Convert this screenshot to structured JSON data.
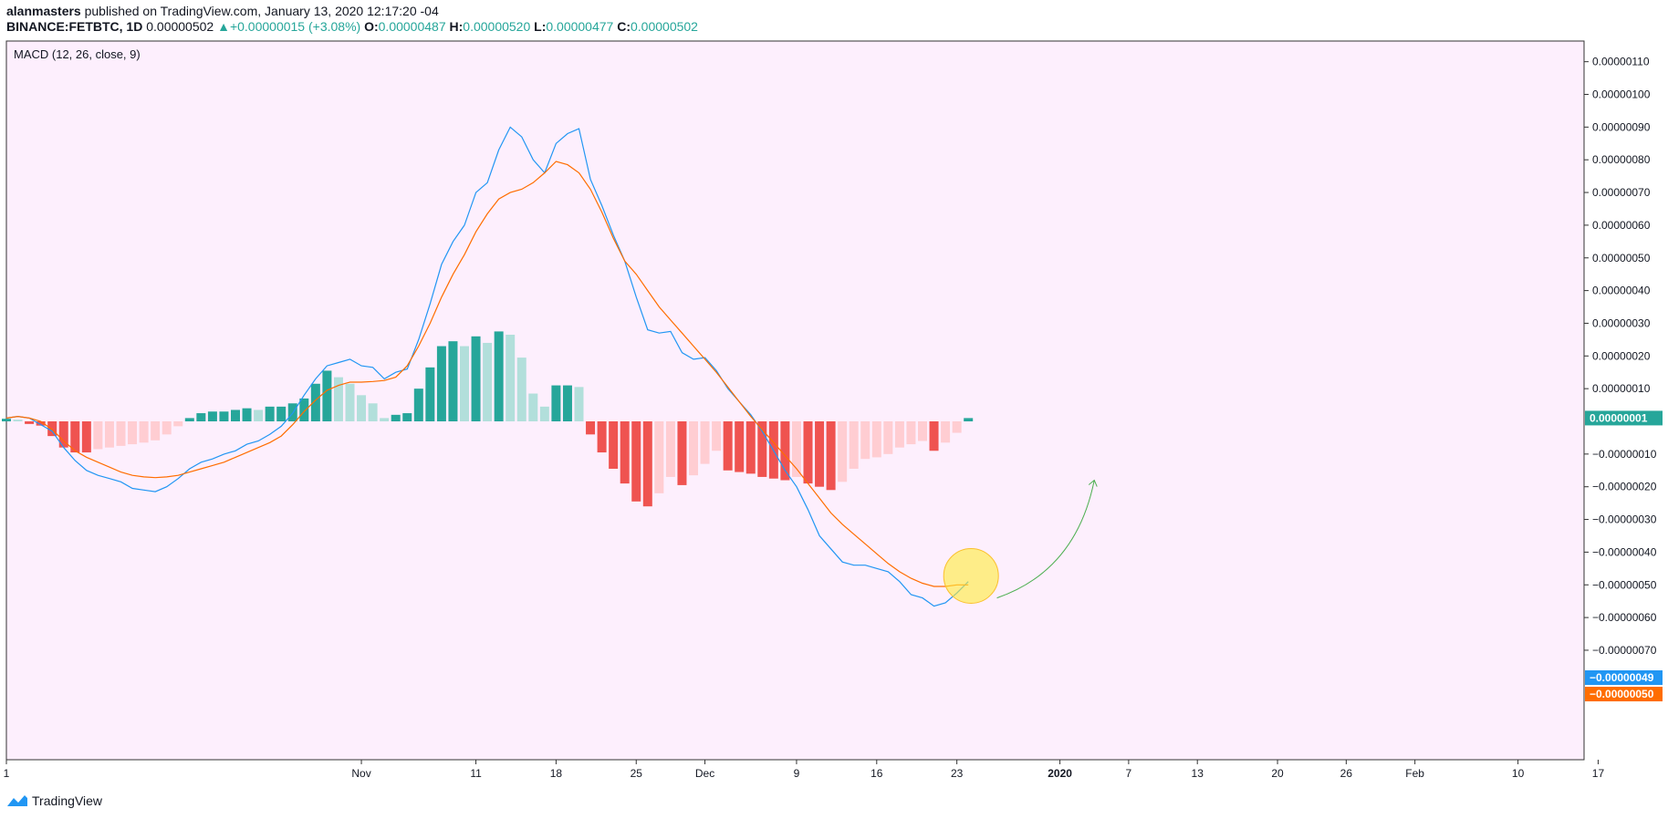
{
  "header": {
    "author": "alanmasters",
    "published": " published on TradingView.com, January 13, 2020 12:17:20 -04",
    "symbol": "BINANCE:FETBTC, 1D",
    "last": "0.00000502",
    "change_arrow": "▲",
    "change": "+0.00000015 (+3.08%)",
    "o_label": "O:",
    "o": "0.00000487",
    "h_label": "H:",
    "h": "0.00000520",
    "l_label": "L:",
    "l": "0.00000477",
    "c_label": "C:",
    "c": "0.00000502"
  },
  "footer": {
    "brand": "TradingView",
    "icon": "tradingview-logo-icon"
  },
  "colors": {
    "pane_bg": "#fdeffd",
    "macd_line": "#2196f3",
    "signal_line": "#ff6d00",
    "hist_pos_strong": "#26a69a",
    "hist_pos_weak": "#b2dfdb",
    "hist_neg_strong": "#ef5350",
    "hist_neg_weak": "#ffcdd2",
    "highlight": "#ffeb3b",
    "arrow": "#4caf50"
  },
  "chart_data": {
    "type": "line",
    "title": "MACD (12, 26, close, 9)",
    "x_ticks": [
      {
        "d": 0,
        "label": "1"
      },
      {
        "d": 31,
        "label": "Nov"
      },
      {
        "d": 41,
        "label": "11"
      },
      {
        "d": 48,
        "label": "18"
      },
      {
        "d": 55,
        "label": "25"
      },
      {
        "d": 61,
        "label": "Dec"
      },
      {
        "d": 69,
        "label": "9"
      },
      {
        "d": 76,
        "label": "16"
      },
      {
        "d": 83,
        "label": "23"
      },
      {
        "d": 92,
        "label": "2020"
      },
      {
        "d": 98,
        "label": "7"
      },
      {
        "d": 104,
        "label": "13"
      },
      {
        "d": 111,
        "label": "20"
      },
      {
        "d": 117,
        "label": "26"
      },
      {
        "d": 123,
        "label": "Feb"
      },
      {
        "d": 132,
        "label": "10"
      },
      {
        "d": 139,
        "label": "17"
      }
    ],
    "y_ticks": [
      {
        "v": 110,
        "label": "0.00000110"
      },
      {
        "v": 100,
        "label": "0.00000100"
      },
      {
        "v": 90,
        "label": "0.00000090"
      },
      {
        "v": 80,
        "label": "0.00000080"
      },
      {
        "v": 70,
        "label": "0.00000070"
      },
      {
        "v": 60,
        "label": "0.00000060"
      },
      {
        "v": 50,
        "label": "0.00000050"
      },
      {
        "v": 40,
        "label": "0.00000040"
      },
      {
        "v": 30,
        "label": "0.00000030"
      },
      {
        "v": 20,
        "label": "0.00000020"
      },
      {
        "v": 10,
        "label": "0.00000010"
      },
      {
        "v": -10,
        "label": "−0.00000010"
      },
      {
        "v": -20,
        "label": "−0.00000020"
      },
      {
        "v": -30,
        "label": "−0.00000030"
      },
      {
        "v": -40,
        "label": "−0.00000040"
      },
      {
        "v": -50,
        "label": "−0.00000050"
      },
      {
        "v": -60,
        "label": "−0.00000060"
      },
      {
        "v": -70,
        "label": "−0.00000070"
      }
    ],
    "y_unit_note": "values in units of 1e-8 BTC",
    "ylim": [
      -70,
      115
    ],
    "xlim": [
      0,
      140
    ],
    "series": [
      {
        "name": "MACD",
        "values": [
          [
            0,
            1
          ],
          [
            1,
            1.5
          ],
          [
            2,
            1
          ],
          [
            3,
            -1
          ],
          [
            4,
            -3
          ],
          [
            5,
            -8
          ],
          [
            6,
            -12
          ],
          [
            7,
            -15
          ],
          [
            8,
            -16.5
          ],
          [
            9,
            -17.5
          ],
          [
            10,
            -18.5
          ],
          [
            11,
            -20.5
          ],
          [
            12,
            -21
          ],
          [
            13,
            -21.5
          ],
          [
            14,
            -20
          ],
          [
            15,
            -17.5
          ],
          [
            16,
            -14.5
          ],
          [
            17,
            -12.5
          ],
          [
            18,
            -11.5
          ],
          [
            19,
            -10
          ],
          [
            20,
            -9
          ],
          [
            21,
            -7
          ],
          [
            22,
            -6
          ],
          [
            23,
            -4
          ],
          [
            24,
            -1.5
          ],
          [
            25,
            2.5
          ],
          [
            26,
            8
          ],
          [
            27,
            13
          ],
          [
            28,
            17
          ],
          [
            29,
            18
          ],
          [
            30,
            19
          ],
          [
            31,
            17
          ],
          [
            32,
            16.5
          ],
          [
            33,
            13
          ],
          [
            34,
            15
          ],
          [
            35,
            16
          ],
          [
            36,
            25
          ],
          [
            37,
            36
          ],
          [
            38,
            48
          ],
          [
            39,
            55
          ],
          [
            40,
            60
          ],
          [
            41,
            70
          ],
          [
            42,
            73
          ],
          [
            43,
            83
          ],
          [
            44,
            90
          ],
          [
            45,
            87
          ],
          [
            46,
            80
          ],
          [
            47,
            76
          ],
          [
            48,
            85
          ],
          [
            49,
            88
          ],
          [
            50,
            89.5
          ],
          [
            51,
            74
          ],
          [
            52,
            66
          ],
          [
            53,
            57
          ],
          [
            54,
            49
          ],
          [
            55,
            38
          ],
          [
            56,
            28
          ],
          [
            57,
            27
          ],
          [
            58,
            27.5
          ],
          [
            59,
            21
          ],
          [
            60,
            19
          ],
          [
            61,
            19.5
          ],
          [
            62,
            15.5
          ],
          [
            63,
            10
          ],
          [
            64,
            6
          ],
          [
            65,
            2
          ],
          [
            66,
            -3
          ],
          [
            67,
            -9
          ],
          [
            68,
            -15
          ],
          [
            69,
            -20
          ],
          [
            70,
            -27
          ],
          [
            71,
            -35
          ],
          [
            72,
            -39
          ],
          [
            73,
            -43
          ],
          [
            74,
            -44
          ],
          [
            75,
            -44
          ],
          [
            76,
            -45
          ],
          [
            77,
            -46
          ],
          [
            78,
            -49
          ],
          [
            79,
            -53
          ],
          [
            80,
            -54
          ],
          [
            81,
            -56.5
          ],
          [
            82,
            -55.5
          ],
          [
            83,
            -52.5
          ],
          [
            84,
            -49
          ]
        ]
      },
      {
        "name": "Signal",
        "values": [
          [
            0,
            1
          ],
          [
            1,
            1.5
          ],
          [
            2,
            1
          ],
          [
            3,
            0
          ],
          [
            4,
            -2.5
          ],
          [
            5,
            -6
          ],
          [
            6,
            -9
          ],
          [
            7,
            -11
          ],
          [
            8,
            -12.5
          ],
          [
            9,
            -14
          ],
          [
            10,
            -15.5
          ],
          [
            11,
            -16.5
          ],
          [
            12,
            -17
          ],
          [
            13,
            -17.2
          ],
          [
            14,
            -17
          ],
          [
            15,
            -16.5
          ],
          [
            16,
            -15.5
          ],
          [
            17,
            -14.5
          ],
          [
            18,
            -13.5
          ],
          [
            19,
            -12.5
          ],
          [
            20,
            -11
          ],
          [
            21,
            -9.5
          ],
          [
            22,
            -8
          ],
          [
            23,
            -6.5
          ],
          [
            24,
            -4.5
          ],
          [
            25,
            -1
          ],
          [
            26,
            3
          ],
          [
            27,
            6.5
          ],
          [
            28,
            9.5
          ],
          [
            29,
            11
          ],
          [
            30,
            12
          ],
          [
            31,
            12
          ],
          [
            32,
            12.2
          ],
          [
            33,
            12.5
          ],
          [
            34,
            13.5
          ],
          [
            35,
            17
          ],
          [
            36,
            23
          ],
          [
            37,
            30
          ],
          [
            38,
            38
          ],
          [
            39,
            45
          ],
          [
            40,
            51
          ],
          [
            41,
            58
          ],
          [
            42,
            63.5
          ],
          [
            43,
            68
          ],
          [
            44,
            70
          ],
          [
            45,
            71
          ],
          [
            46,
            73
          ],
          [
            47,
            76
          ],
          [
            48,
            79.5
          ],
          [
            49,
            78.5
          ],
          [
            50,
            76
          ],
          [
            51,
            71
          ],
          [
            52,
            64
          ],
          [
            53,
            56
          ],
          [
            54,
            49
          ],
          [
            55,
            45
          ],
          [
            56,
            40
          ],
          [
            57,
            35
          ],
          [
            58,
            31
          ],
          [
            59,
            27
          ],
          [
            60,
            23
          ],
          [
            61,
            19
          ],
          [
            62,
            15
          ],
          [
            63,
            10.5
          ],
          [
            64,
            6
          ],
          [
            65,
            1.5
          ],
          [
            66,
            -2.5
          ],
          [
            67,
            -6.5
          ],
          [
            68,
            -10.5
          ],
          [
            69,
            -14.5
          ],
          [
            70,
            -19
          ],
          [
            71,
            -23.5
          ],
          [
            72,
            -28
          ],
          [
            73,
            -31.5
          ],
          [
            74,
            -34.5
          ],
          [
            75,
            -37.5
          ],
          [
            76,
            -40.5
          ],
          [
            77,
            -43.5
          ],
          [
            78,
            -46
          ],
          [
            79,
            -48
          ],
          [
            80,
            -49.5
          ],
          [
            81,
            -50.5
          ],
          [
            82,
            -50.5
          ],
          [
            83,
            -50
          ],
          [
            84,
            -50
          ]
        ]
      }
    ],
    "histogram": [
      [
        0,
        0.8
      ],
      [
        1,
        0.5
      ],
      [
        2,
        -0.8
      ],
      [
        3,
        -1.3
      ],
      [
        4,
        -4.5
      ],
      [
        5,
        -8
      ],
      [
        6,
        -9.5
      ],
      [
        7,
        -9.5
      ],
      [
        8,
        -8.5
      ],
      [
        9,
        -8
      ],
      [
        10,
        -7.5
      ],
      [
        11,
        -7
      ],
      [
        12,
        -6.5
      ],
      [
        13,
        -5.8
      ],
      [
        14,
        -4
      ],
      [
        15,
        -1.5
      ],
      [
        16,
        1
      ],
      [
        17,
        2.5
      ],
      [
        18,
        3
      ],
      [
        19,
        3
      ],
      [
        20,
        3.5
      ],
      [
        21,
        4
      ],
      [
        22,
        3.5
      ],
      [
        23,
        4.5
      ],
      [
        24,
        4.5
      ],
      [
        25,
        5.5
      ],
      [
        26,
        7
      ],
      [
        27,
        11.5
      ],
      [
        28,
        15.5
      ],
      [
        29,
        13.5
      ],
      [
        30,
        11.5
      ],
      [
        31,
        8
      ],
      [
        32,
        5.5
      ],
      [
        33,
        1
      ],
      [
        34,
        2
      ],
      [
        35,
        2.5
      ],
      [
        36,
        10
      ],
      [
        37,
        16.5
      ],
      [
        38,
        23
      ],
      [
        39,
        24.5
      ],
      [
        40,
        23
      ],
      [
        41,
        26
      ],
      [
        42,
        24
      ],
      [
        43,
        27.5
      ],
      [
        44,
        26.5
      ],
      [
        45,
        19.5
      ],
      [
        46,
        8.5
      ],
      [
        47,
        4.5
      ],
      [
        48,
        11
      ],
      [
        49,
        11
      ],
      [
        50,
        10.5
      ],
      [
        51,
        -4
      ],
      [
        52,
        -9.5
      ],
      [
        53,
        -14.5
      ],
      [
        54,
        -19
      ],
      [
        55,
        -24.5
      ],
      [
        56,
        -26
      ],
      [
        57,
        -22
      ],
      [
        58,
        -17
      ],
      [
        59,
        -19.5
      ],
      [
        60,
        -16.5
      ],
      [
        61,
        -13
      ],
      [
        62,
        -9
      ],
      [
        63,
        -15
      ],
      [
        64,
        -15.5
      ],
      [
        65,
        -16
      ],
      [
        66,
        -17
      ],
      [
        67,
        -17.5
      ],
      [
        68,
        -18
      ],
      [
        69,
        -17
      ],
      [
        70,
        -19
      ],
      [
        71,
        -20
      ],
      [
        72,
        -21
      ],
      [
        73,
        -18.5
      ],
      [
        74,
        -14.5
      ],
      [
        75,
        -11.5
      ],
      [
        76,
        -11
      ],
      [
        77,
        -10
      ],
      [
        78,
        -8
      ],
      [
        79,
        -7
      ],
      [
        80,
        -6
      ],
      [
        81,
        -9
      ],
      [
        82,
        -6.5
      ],
      [
        83,
        -3.5
      ],
      [
        84,
        1
      ]
    ],
    "last_values": [
      {
        "name": "Histogram",
        "label": "0.00000001",
        "v": 1,
        "color": "#26a69a"
      },
      {
        "name": "MACD",
        "label": "−0.00000049",
        "v": -49,
        "color": "#2196f3"
      },
      {
        "name": "Signal",
        "label": "−0.00000050",
        "v": -50,
        "color": "#ff6d00"
      }
    ],
    "annotations": [
      {
        "type": "circle",
        "d": 84,
        "v": -47,
        "color": "#ffeb3b"
      },
      {
        "type": "arrow",
        "from": [
          86.5,
          -54
        ],
        "to": [
          95,
          -18
        ],
        "color": "#4caf50"
      }
    ],
    "grid": false,
    "legend": "top-left"
  }
}
